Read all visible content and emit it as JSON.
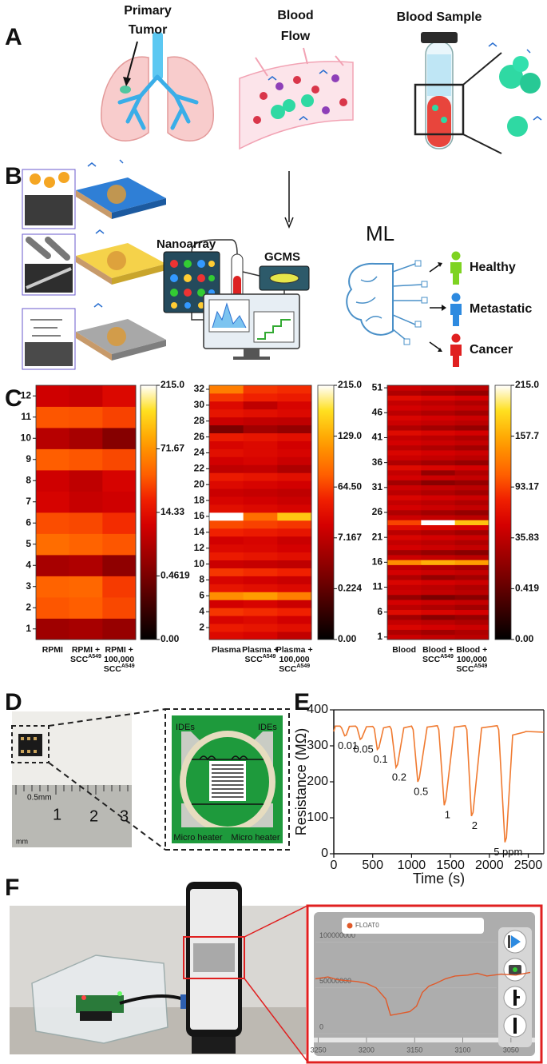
{
  "figure": {
    "panel_labels": [
      "A",
      "B",
      "C",
      "D",
      "E",
      "F"
    ],
    "panel_a": {
      "tumor": [
        "Primary",
        "Tumor"
      ],
      "flow": [
        "Blood",
        "Flow"
      ],
      "sample": "Blood Sample"
    },
    "panel_b": {
      "nanoarray": "Nanoarray",
      "gcms": "GCMS",
      "ml": "ML",
      "classes": [
        "Healthy",
        "Metastatic",
        "Cancer"
      ]
    },
    "panel_d": {
      "ides": [
        "IDEs",
        "IDEs"
      ],
      "heaters": [
        "Micro heater",
        "Micro heater"
      ],
      "ruler": [
        "0.5mm",
        "mm",
        "1",
        "2",
        "3"
      ]
    }
  },
  "chart_data": [
    {
      "type": "heatmap",
      "columns": [
        {
          "lines": [
            "RPMI"
          ]
        },
        {
          "lines": [
            "RPMI +",
            "SCC"
          ],
          "sup": "A549"
        },
        {
          "lines": [
            "RPMI +",
            "100,000",
            "SCC"
          ],
          "sup": "A549"
        }
      ],
      "yticks": [
        1,
        2,
        3,
        4,
        5,
        6,
        7,
        8,
        9,
        10,
        11,
        12
      ],
      "values": [
        [
          5,
          45,
          50,
          6,
          55,
          42,
          12,
          11,
          48,
          8,
          45,
          11
        ],
        [
          6,
          48,
          52,
          7,
          50,
          40,
          10,
          9,
          45,
          6,
          44,
          10
        ],
        [
          4,
          40,
          35,
          3,
          45,
          30,
          11,
          12,
          40,
          2,
          38,
          13
        ]
      ],
      "colorbar_ticks": [
        {
          "value": 0,
          "label": "0.00"
        },
        0.4619,
        14.33,
        71.67,
        {
          "value": 215,
          "label": "215.0"
        }
      ]
    },
    {
      "type": "heatmap",
      "columns": [
        {
          "lines": [
            "Plasma"
          ]
        },
        {
          "lines": [
            "Plasma +",
            "SCC"
          ],
          "sup": "A549"
        },
        {
          "lines": [
            "Plasma +",
            "100,000",
            "SCC"
          ],
          "sup": "A549"
        }
      ],
      "yticks": [
        2,
        4,
        6,
        8,
        10,
        12,
        14,
        16,
        18,
        20,
        22,
        24,
        26,
        28,
        30,
        32
      ],
      "values": [
        [
          30,
          45,
          25,
          60,
          20,
          110,
          40,
          25,
          60,
          15,
          45,
          30,
          20,
          50,
          70,
          215,
          35,
          25,
          15,
          30,
          45,
          8,
          20,
          35,
          25,
          45,
          2,
          15,
          40,
          30,
          60,
          100
        ],
        [
          25,
          40,
          30,
          55,
          25,
          120,
          35,
          20,
          55,
          12,
          40,
          28,
          25,
          45,
          65,
          90,
          30,
          20,
          12,
          25,
          40,
          10,
          25,
          30,
          30,
          40,
          5,
          10,
          35,
          8,
          50,
          60
        ],
        [
          10,
          35,
          20,
          50,
          15,
          100,
          30,
          15,
          50,
          8,
          35,
          22,
          15,
          40,
          60,
          150,
          25,
          15,
          8,
          20,
          35,
          6,
          15,
          25,
          20,
          35,
          4,
          8,
          30,
          25,
          45,
          55
        ]
      ],
      "colorbar_ticks": [
        {
          "value": 0,
          "label": "0.00"
        },
        0.224,
        7.167,
        {
          "value": 64.5,
          "label": "64.50"
        },
        {
          "value": 129,
          "label": "129.0"
        },
        {
          "value": 215,
          "label": "215.0"
        }
      ]
    },
    {
      "type": "heatmap",
      "columns": [
        {
          "lines": [
            "Blood"
          ]
        },
        {
          "lines": [
            "Blood +",
            "SCC"
          ],
          "sup": "A549"
        },
        {
          "lines": [
            "Blood +",
            "100,000",
            "SCC"
          ],
          "sup": "A549"
        }
      ],
      "yticks": [
        1,
        6,
        11,
        16,
        21,
        26,
        31,
        36,
        41,
        46,
        51
      ],
      "values": [
        [
          45,
          30,
          55,
          40,
          25,
          60,
          35,
          50,
          20,
          45,
          40,
          55,
          30,
          50,
          35,
          140,
          45,
          25,
          50,
          40,
          55,
          35,
          60,
          95,
          45,
          30,
          50,
          40,
          55,
          35,
          45,
          25,
          50,
          40,
          60,
          30,
          45,
          55,
          35,
          50,
          40,
          60,
          30,
          45,
          55,
          35,
          50,
          40,
          60,
          30,
          45
        ],
        [
          40,
          25,
          50,
          35,
          15,
          55,
          30,
          45,
          10,
          40,
          35,
          50,
          20,
          45,
          30,
          160,
          40,
          20,
          45,
          35,
          50,
          30,
          55,
          215,
          40,
          25,
          45,
          35,
          50,
          30,
          40,
          15,
          45,
          20,
          55,
          25,
          40,
          50,
          30,
          45,
          35,
          55,
          25,
          40,
          50,
          30,
          45,
          35,
          55,
          25,
          40
        ],
        [
          35,
          30,
          45,
          30,
          20,
          50,
          25,
          40,
          15,
          35,
          30,
          45,
          25,
          40,
          25,
          150,
          35,
          15,
          40,
          30,
          45,
          25,
          50,
          170,
          35,
          20,
          40,
          30,
          45,
          25,
          35,
          20,
          40,
          30,
          50,
          20,
          35,
          45,
          25,
          40,
          30,
          50,
          20,
          35,
          45,
          25,
          40,
          30,
          50,
          20,
          35
        ]
      ],
      "colorbar_ticks": [
        {
          "value": 0,
          "label": "0.00"
        },
        0.419,
        35.83,
        93.17,
        157.7,
        {
          "value": 215,
          "label": "215.0"
        }
      ]
    },
    {
      "type": "line",
      "xlabel": "Time (s)",
      "ylabel": "Resistance (MΩ)",
      "xlim": [
        0,
        2700
      ],
      "ylim": [
        0,
        400
      ],
      "xticks": [
        0,
        500,
        1000,
        1500,
        2000,
        2500
      ],
      "yticks": [
        0,
        100,
        200,
        300,
        400
      ],
      "x": [
        0,
        20,
        80,
        100,
        140,
        160,
        200,
        280,
        300,
        340,
        360,
        420,
        500,
        520,
        560,
        580,
        640,
        720,
        740,
        800,
        820,
        900,
        1000,
        1020,
        1080,
        1100,
        1200,
        1330,
        1350,
        1420,
        1440,
        1550,
        1690,
        1710,
        1770,
        1790,
        1900,
        2100,
        2120,
        2200,
        2220,
        2300,
        2450,
        2470,
        2700
      ],
      "series": [
        {
          "color": "#f07a30",
          "values": [
            340,
            355,
            355,
            350,
            328,
            330,
            354,
            355,
            350,
            318,
            322,
            353,
            354,
            348,
            290,
            295,
            350,
            354,
            346,
            240,
            248,
            350,
            355,
            345,
            200,
            210,
            352,
            356,
            345,
            135,
            150,
            352,
            356,
            345,
            105,
            115,
            350,
            356,
            345,
            32,
            45,
            330,
            338,
            340,
            338
          ]
        }
      ],
      "annotations": [
        "0.01",
        "0.05",
        "0.1",
        "0.2",
        "0.5",
        "1",
        "2",
        "5 ppm"
      ]
    },
    {
      "type": "line",
      "xlim": [
        3253,
        3025
      ],
      "ylim": [
        0,
        125000000
      ],
      "xticks": [
        3250,
        3200,
        3150,
        3100,
        3050
      ],
      "yticks": [
        0,
        50000000,
        100000000
      ],
      "x": [
        3253,
        3240,
        3230,
        3222,
        3210,
        3200,
        3190,
        3180,
        3175,
        3165,
        3155,
        3148,
        3142,
        3135,
        3128,
        3118,
        3108,
        3095,
        3085,
        3075,
        3060,
        3045,
        3030
      ],
      "series": [
        {
          "name": "FLOAT0",
          "color": "#e05a2a",
          "values": [
            60000000,
            62000000,
            59000000,
            58000000,
            57000000,
            55000000,
            50000000,
            38000000,
            20000000,
            22000000,
            24000000,
            30000000,
            45000000,
            52000000,
            55000000,
            60000000,
            63000000,
            64000000,
            66000000,
            63000000,
            65000000,
            64000000,
            67000000
          ]
        }
      ]
    }
  ]
}
